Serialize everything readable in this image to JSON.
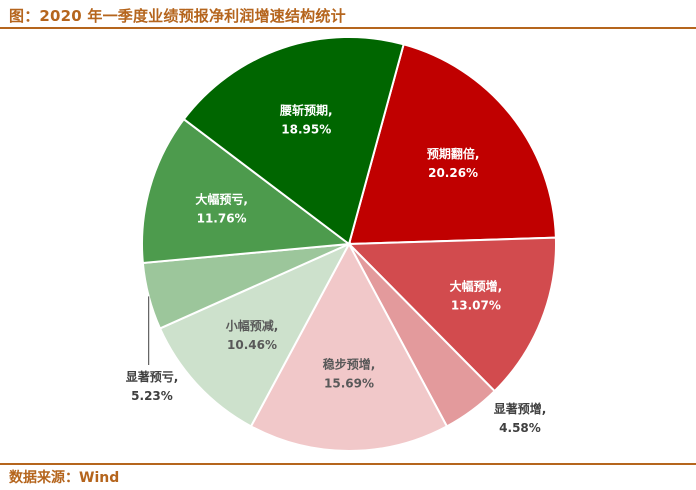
{
  "title": "图：2020 年一季度业绩预报净利润增速结构统计",
  "source": "数据来源：Wind",
  "chart_data": {
    "type": "pie",
    "title": "图：2020 年一季度业绩预报净利润增速结构统计",
    "slices": [
      {
        "label": "预期翻倍",
        "value": 20.26,
        "display": "20.26%",
        "color": "#c00000",
        "text_color": "#ffffff"
      },
      {
        "label": "大幅预增",
        "value": 13.07,
        "display": "13.07%",
        "color": "#d24b4e",
        "text_color": "#ffffff"
      },
      {
        "label": "显著预增",
        "value": 4.58,
        "display": "4.58%",
        "color": "#e39a9c",
        "text_color": "#404040"
      },
      {
        "label": "稳步预增",
        "value": 15.69,
        "display": "15.69%",
        "color": "#f1c8c9",
        "text_color": "#595959"
      },
      {
        "label": "小幅预减",
        "value": 10.46,
        "display": "10.46%",
        "color": "#cde1cc",
        "text_color": "#595959"
      },
      {
        "label": "显著预亏",
        "value": 5.23,
        "display": "5.23%",
        "color": "#9cc69b",
        "text_color": "#404040"
      },
      {
        "label": "大幅预亏",
        "value": 11.76,
        "display": "11.76%",
        "color": "#4d9b4d",
        "text_color": "#ffffff"
      },
      {
        "label": "腰斩预期",
        "value": 18.95,
        "display": "18.95%",
        "color": "#006600",
        "text_color": "#ffffff"
      }
    ],
    "start_angle_deg": 15.3,
    "direction": "clockwise",
    "legend": "none",
    "label_format": "{label},\n{value}%"
  }
}
